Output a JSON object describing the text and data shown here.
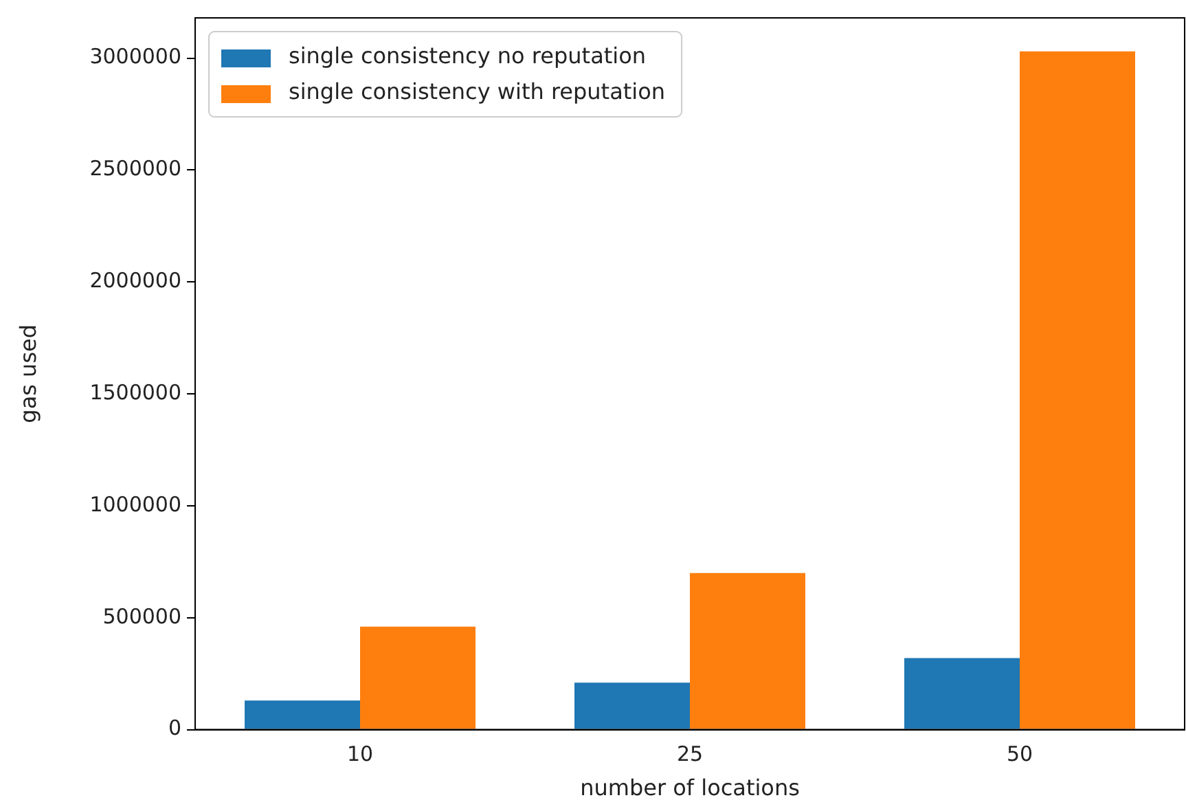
{
  "chart_data": {
    "type": "bar",
    "xlabel": "number of locations",
    "ylabel": "gas used",
    "categories": [
      "10",
      "25",
      "50"
    ],
    "series": [
      {
        "name": "single consistency no reputation",
        "color": "#1f77b4",
        "values": [
          130000,
          210000,
          320000
        ]
      },
      {
        "name": "single consistency with reputation",
        "color": "#ff7f0e",
        "values": [
          460000,
          700000,
          3030000
        ]
      }
    ],
    "ylim": [
      0,
      3180000
    ],
    "yticks": [
      0,
      500000,
      1000000,
      1500000,
      2000000,
      2500000,
      3000000
    ],
    "grid": false,
    "legend": "top left"
  }
}
